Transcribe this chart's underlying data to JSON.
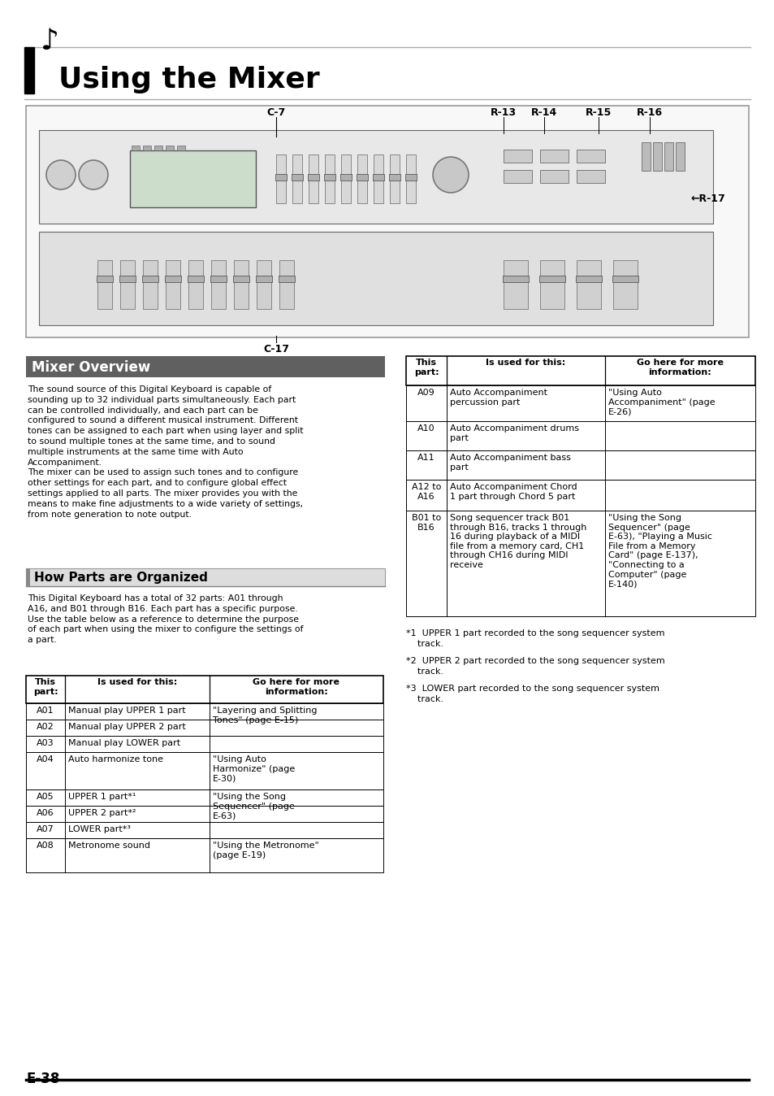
{
  "title": "Using the Mixer",
  "page_num": "E-38",
  "bg_color": "#ffffff",
  "header_bar_color": "#606060",
  "section1_title": "Mixer Overview",
  "section1_body": "The sound source of this Digital Keyboard is capable of\nsounding up to 32 individual parts simultaneously. Each part\ncan be controlled individually, and each part can be\nconfigured to sound a different musical instrument. Different\ntones can be assigned to each part when using layer and split\nto sound multiple tones at the same time, and to sound\nmultiple instruments at the same time with Auto\nAccompaniment.\nThe mixer can be used to assign such tones and to configure\nother settings for each part, and to configure global effect\nsettings applied to all parts. The mixer provides you with the\nmeans to make fine adjustments to a wide variety of settings,\nfrom note generation to note output.",
  "section2_title": "How Parts are Organized",
  "section2_body": "This Digital Keyboard has a total of 32 parts: A01 through\nA16, and B01 through B16. Each part has a specific purpose.\nUse the table below as a reference to determine the purpose\nof each part when using the mixer to configure the settings of\na part.",
  "table_left_headers": [
    "This\npart:",
    "Is used for this:",
    "Go here for more\ninformation:"
  ],
  "table_left_rows": [
    [
      "A01",
      "Manual play UPPER 1 part",
      "\"Layering and Splitting\nTones\" (page E-15)"
    ],
    [
      "A02",
      "Manual play UPPER 2 part",
      ""
    ],
    [
      "A03",
      "Manual play LOWER part",
      ""
    ],
    [
      "A04",
      "Auto harmonize tone",
      "\"Using Auto\nHarmonize\" (page\nE-30)"
    ],
    [
      "A05",
      "UPPER 1 part*¹",
      "\"Using the Song\nSequencer\" (page\nE-63)"
    ],
    [
      "A06",
      "UPPER 2 part*²",
      ""
    ],
    [
      "A07",
      "LOWER part*³",
      ""
    ],
    [
      "A08",
      "Metronome sound",
      "\"Using the Metronome\"\n(page E-19)"
    ]
  ],
  "table_right_headers": [
    "This\npart:",
    "Is used for this:",
    "Go here for more\ninformation:"
  ],
  "table_right_rows": [
    [
      "A09",
      "Auto Accompaniment\npercussion part",
      "\"Using Auto\nAccompaniment\" (page\nE-26)"
    ],
    [
      "A10",
      "Auto Accompaniment drums\npart",
      ""
    ],
    [
      "A11",
      "Auto Accompaniment bass\npart",
      ""
    ],
    [
      "A12 to\nA16",
      "Auto Accompaniment Chord\n1 part through Chord 5 part",
      ""
    ],
    [
      "B01 to\nB16",
      "Song sequencer track B01\nthrough B16, tracks 1 through\n16 during playback of a MIDI\nfile from a memory card, CH1\nthrough CH16 during MIDI\nreceive",
      "\"Using the Song\nSequencer\" (page\nE-63), \"Playing a Music\nFile from a Memory\nCard\" (page E-137),\n\"Connecting to a\nComputer\" (page\nE-140)"
    ]
  ],
  "footnotes": [
    "*1  UPPER 1 part recorded to the song sequencer system\n    track.",
    "*2  UPPER 2 part recorded to the song sequencer system\n    track.",
    "*3  LOWER part recorded to the song sequencer system\n    track."
  ],
  "keyboard_labels": [
    "C-7",
    "R-13",
    "R-14",
    "R-15",
    "R-16",
    "R-17",
    "C-17"
  ],
  "diagram_border_color": "#888888",
  "diagram_bg": "#f8f8f8"
}
